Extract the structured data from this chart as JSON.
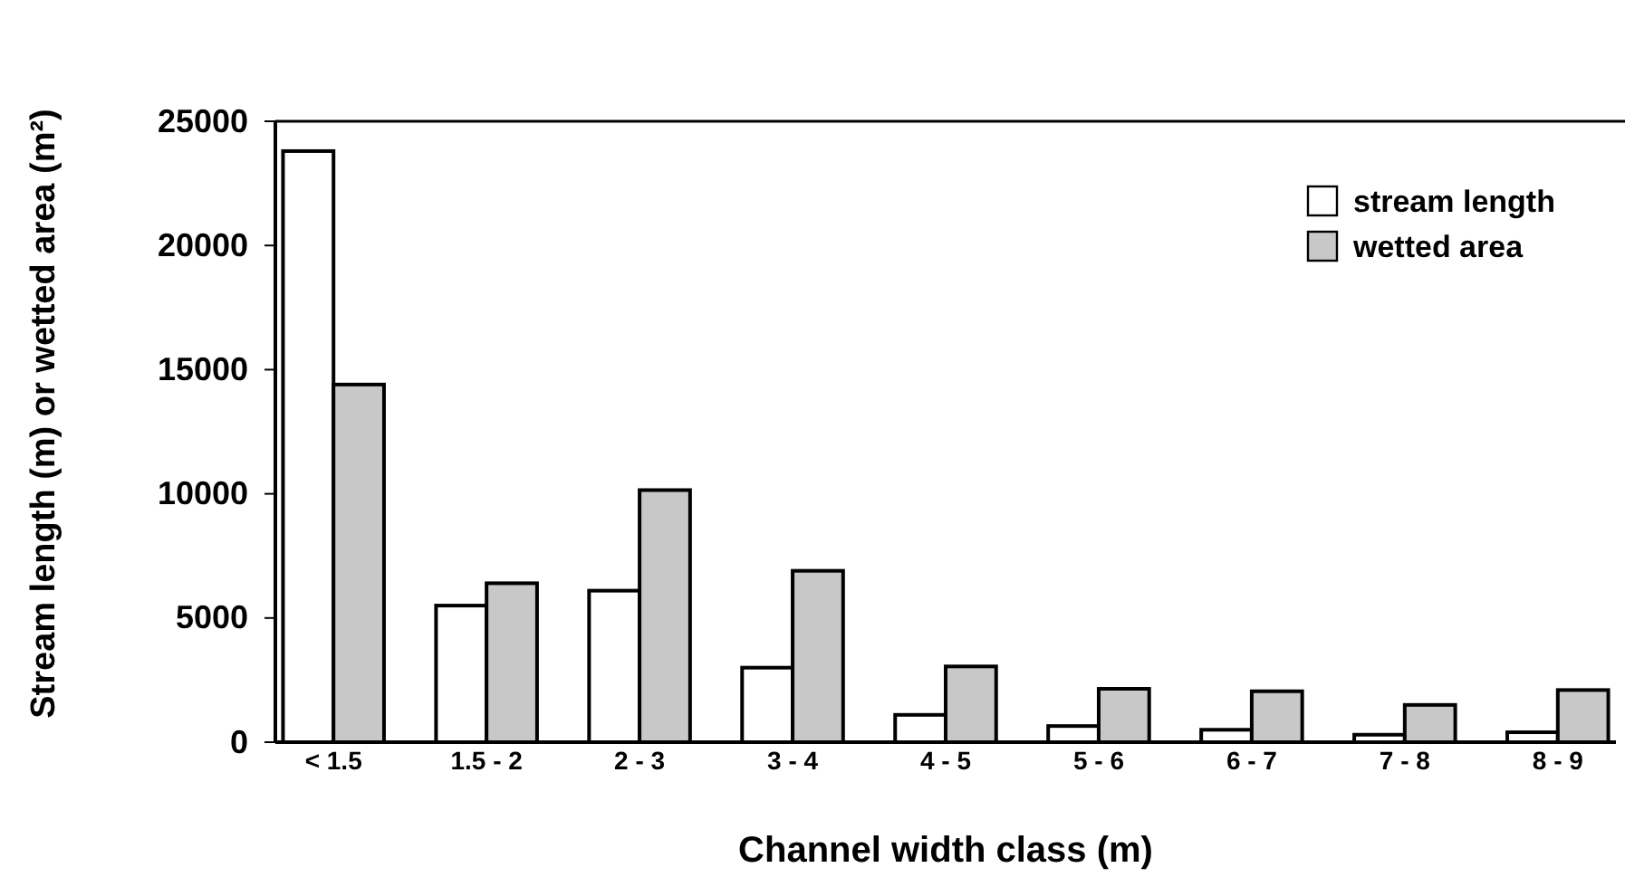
{
  "chart_data": {
    "type": "bar",
    "xlabel": "Channel width class (m)",
    "ylabel": "Stream length (m) or wetted area (m²)",
    "categories": [
      "< 1.5",
      "1.5 - 2",
      "2 - 3",
      "3 - 4",
      "4 - 5",
      "5 - 6",
      "6 - 7",
      "7 - 8",
      "8 - 9"
    ],
    "series": [
      {
        "name": "stream length",
        "color": "#ffffff",
        "values": [
          23800,
          5500,
          6100,
          3000,
          1100,
          650,
          500,
          300,
          400
        ]
      },
      {
        "name": "wetted area",
        "color": "#c8c8c8",
        "values": [
          14400,
          6400,
          10150,
          6900,
          3050,
          2150,
          2050,
          1500,
          2100
        ]
      }
    ],
    "ylim": [
      0,
      25000
    ],
    "yticks": [
      0,
      5000,
      10000,
      15000,
      20000,
      25000
    ],
    "grid": false,
    "legend": "top right"
  }
}
